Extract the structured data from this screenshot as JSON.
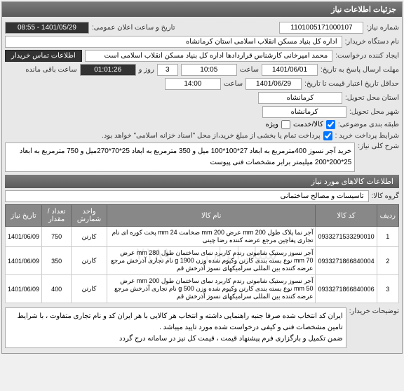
{
  "panels": {
    "main_header": "جزئیات اطلاعات نیاز",
    "need_info_header": "اطلاعات کالاهای مورد نیاز"
  },
  "fields": {
    "need_number": {
      "label": "شماره نیاز:",
      "value": "1101005171000107"
    },
    "announce_date": {
      "label": "تاریخ و ساعت اعلان عمومی:",
      "value": "1401/05/29 - 08:55"
    },
    "buyer_name": {
      "label": "نام دستگاه خریدار:",
      "value": "اداره کل بنیاد مسکن انقلاب اسلامی استان کرمانشاه"
    },
    "requester": {
      "label": "ایجاد کننده درخواست:",
      "value": "محمد امیرخانی کارشناس  قراردادها اداره کل بنیاد مسکن انقلاب اسلامی است"
    },
    "contact_btn": "اطلاعات تماس خریدار",
    "deadline": {
      "label": "مهلت ارسال پاسخ به تاریخ:",
      "date": "1401/06/01",
      "time_label": "ساعت",
      "time": "10:05",
      "days": "3",
      "days_label": "روز و",
      "countdown": "01:01:26",
      "remain_label": "ساعت باقی مانده"
    },
    "validity": {
      "label": "حداقل تاریخ اعتبار قیمت تا تاریخ:",
      "date": "1401/06/29",
      "time_label": "ساعت",
      "time": "14:00"
    },
    "province": {
      "label": "استان محل تحویل:",
      "value": "کرمانشاه"
    },
    "city": {
      "label": "شهر محل تحویل:",
      "value": "کرمانشاه"
    },
    "budget": {
      "label": "طبقه بندی موضوعی:",
      "opt1": "کالا/خدمت",
      "opt2": "ویژه"
    },
    "payment": {
      "label": "شرایط پرداخت خرید :",
      "value": "پرداخت تمام یا بخشی از مبلغ خرید،از محل \"اسناد خزانه اسلامی\" خواهد بود."
    },
    "description": {
      "label": "شرح کلی نیاز:",
      "value": "خرید آجر نسوز 400مترمربع به ابعاد 27*100*100 میل و 350 مترمربع به ابعاد 25*70*270میل و 750 مترمربع به ابعاد 25*200*200 میلیمتر برابر مشخصات فنی پیوست"
    },
    "group": {
      "label": "گروه کالا:",
      "value": "تاسیسات و مصالح ساختمانی"
    },
    "buyer_notes": {
      "label": "توضیحات خریدار:",
      "value": "ایران کد انتخاب شده صرفا جنبه راهنمایی داشته و انتخاب هر کالایی با هر ایران کد و نام تجاری متفاوت ، با شرایط تامین مشخصات فنی و کیفی درخواست شده مورد تایید میباشد .\nضمن تکمیل و بارگزاری فرم پیشنهاد قیمت ، قیمت کل نیز در سامانه درج گردد"
    }
  },
  "table": {
    "columns": [
      "ردیف",
      "کد کالا",
      "نام کالا",
      "واحد شمارش",
      "تعداد / مقدار",
      "تاریخ نیاز"
    ],
    "rows": [
      {
        "n": "1",
        "code": "0933271533290010",
        "name": "آجر نما پلاک طول mm 200 عرض mm 200 ضخامت mm 24 پخت کوره ای نام تجاری پفاچین مرجع عرضه کننده رضا چینی",
        "unit": "کارتن",
        "qty": "750",
        "date": "1401/06/09"
      },
      {
        "n": "2",
        "code": "0933271866840004",
        "name": "آجر نسوز رستیک شاموتی رندم کاربرد نمای ساختمان طول mm 280 عرض mm 70 نوع بسته بندی کارتن وکیوم شده وزن g 1900 نام تجاری آذرخش مرجع عرضه کننده بین المللی سرامیکهای نسوز آذرخش قم",
        "unit": "کارتن",
        "qty": "350",
        "date": "1401/06/09"
      },
      {
        "n": "3",
        "code": "0933271866840006",
        "name": "آجر نسوز رستیک شاموتی رندم کاربرد نمای ساختمان طول mm 200 عرض mm 50 نوع بسته بندی کارتن وکیوم شده وزن g 500 نام تجاری آذرخش مرجع عرضه کننده بین المللی سرامیکهای نسوز آذرخش قم",
        "unit": "کارتن",
        "qty": "400",
        "date": "1401/06/09"
      }
    ]
  },
  "watermark": "ستاد ایران - ۰۲۱۸۱۰۰"
}
